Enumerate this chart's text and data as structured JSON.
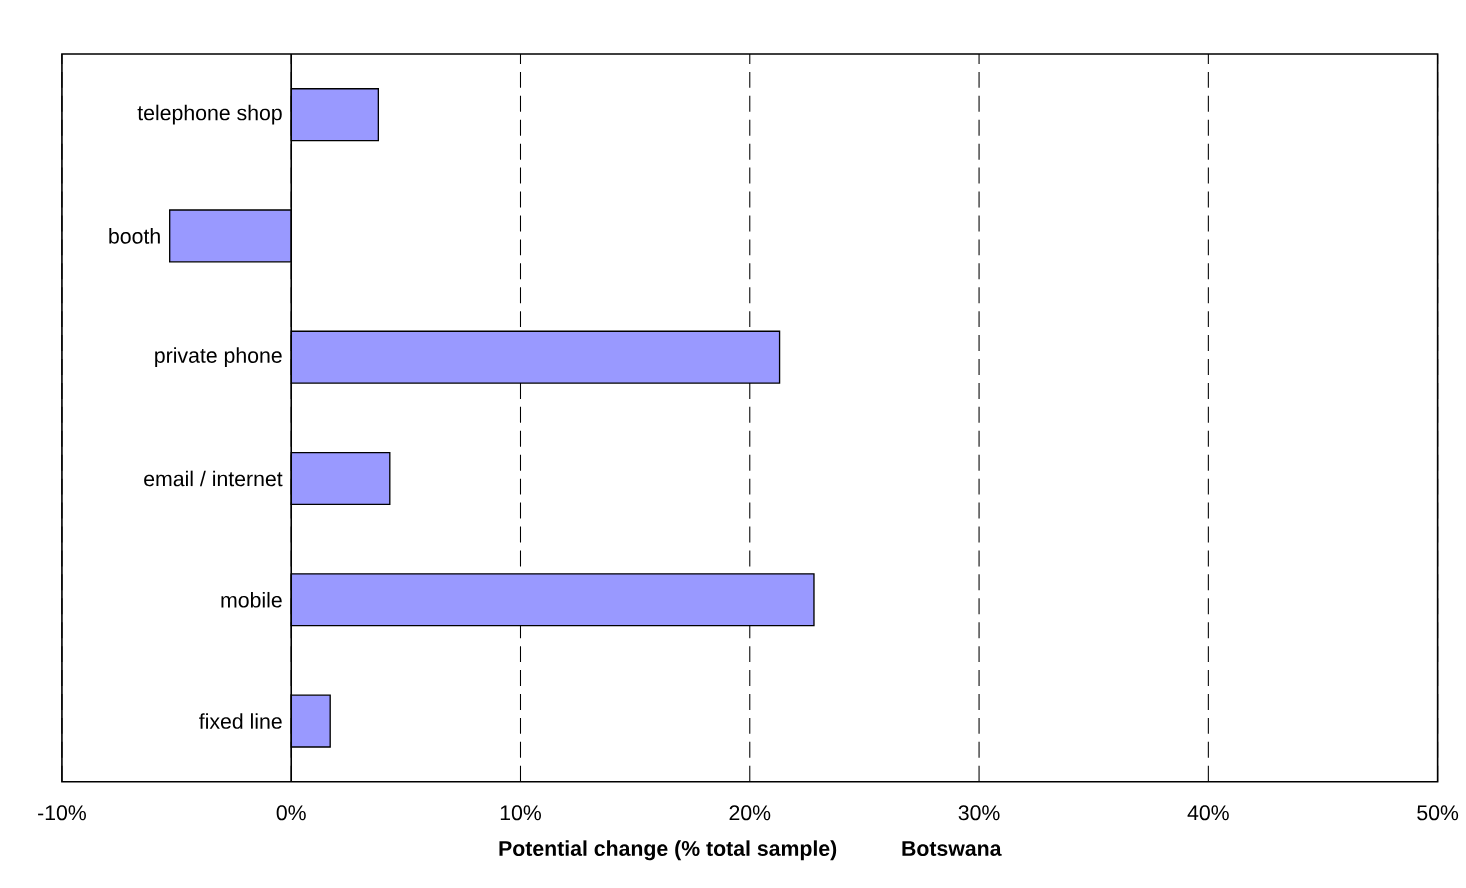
{
  "chart_data": {
    "type": "bar",
    "orientation": "horizontal",
    "title": "Botswana",
    "xlabel": "Potential change (% total sample)",
    "categories": [
      "telephone shop",
      "booth",
      "private phone",
      "email / internet",
      "mobile",
      "fixed line"
    ],
    "values": [
      3.8,
      -5.3,
      21.3,
      4.3,
      22.8,
      1.7
    ],
    "color": "#9999ff",
    "xlim": [
      -10,
      50
    ],
    "xticks": [
      {
        "value": -10,
        "label": "-10%"
      },
      {
        "value": 0,
        "label": "0%"
      },
      {
        "value": 10,
        "label": "10%"
      },
      {
        "value": 20,
        "label": "20%"
      },
      {
        "value": 30,
        "label": "30%"
      },
      {
        "value": 40,
        "label": "40%"
      },
      {
        "value": 50,
        "label": "50%"
      }
    ],
    "grid": "x"
  }
}
